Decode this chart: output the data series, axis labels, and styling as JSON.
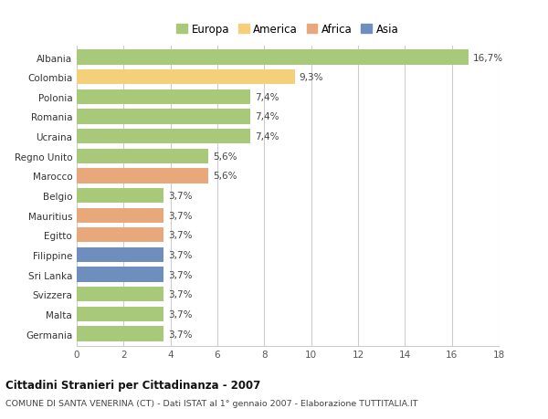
{
  "countries": [
    "Albania",
    "Colombia",
    "Polonia",
    "Romania",
    "Ucraina",
    "Regno Unito",
    "Marocco",
    "Belgio",
    "Mauritius",
    "Egitto",
    "Filippine",
    "Sri Lanka",
    "Svizzera",
    "Malta",
    "Germania"
  ],
  "values": [
    16.7,
    9.3,
    7.4,
    7.4,
    7.4,
    5.6,
    5.6,
    3.7,
    3.7,
    3.7,
    3.7,
    3.7,
    3.7,
    3.7,
    3.7
  ],
  "labels": [
    "16,7%",
    "9,3%",
    "7,4%",
    "7,4%",
    "7,4%",
    "5,6%",
    "5,6%",
    "3,7%",
    "3,7%",
    "3,7%",
    "3,7%",
    "3,7%",
    "3,7%",
    "3,7%",
    "3,7%"
  ],
  "continent": [
    "Europa",
    "America",
    "Europa",
    "Europa",
    "Europa",
    "Europa",
    "Africa",
    "Europa",
    "Africa",
    "Africa",
    "Asia",
    "Asia",
    "Europa",
    "Europa",
    "Europa"
  ],
  "colors": {
    "Europa": "#a8c87a",
    "America": "#f5d07a",
    "Africa": "#e8a87c",
    "Asia": "#6e8fbe"
  },
  "legend_order": [
    "Europa",
    "America",
    "Africa",
    "Asia"
  ],
  "xlim": [
    0,
    18
  ],
  "xticks": [
    0,
    2,
    4,
    6,
    8,
    10,
    12,
    14,
    16,
    18
  ],
  "title": "Cittadini Stranieri per Cittadinanza - 2007",
  "subtitle": "COMUNE DI SANTA VENERINA (CT) - Dati ISTAT al 1° gennaio 2007 - Elaborazione TUTTITALIA.IT",
  "background_color": "#ffffff",
  "grid_color": "#cccccc",
  "bar_height": 0.75
}
